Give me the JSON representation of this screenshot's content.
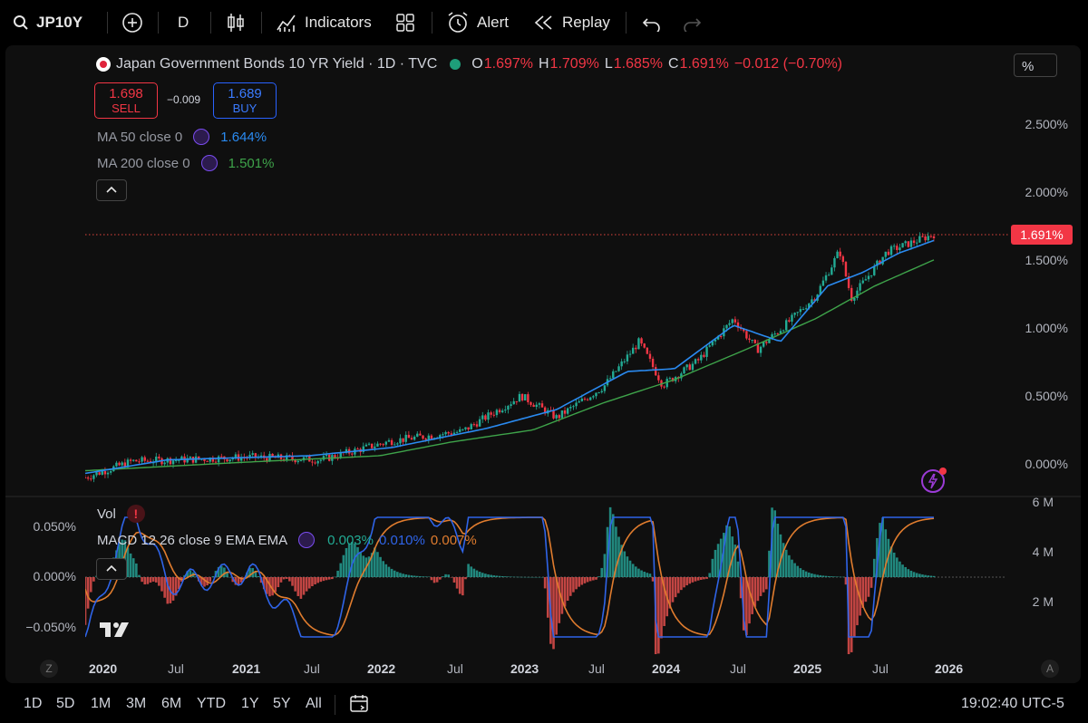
{
  "toolbar": {
    "symbol": "JP10Y",
    "interval": "D",
    "indicators_label": "Indicators",
    "alert_label": "Alert",
    "replay_label": "Replay"
  },
  "legend": {
    "title": "Japan Government Bonds 10 YR Yield · 1D · TVC",
    "o_label": "O",
    "o_value": "1.697%",
    "h_label": "H",
    "h_value": "1.709%",
    "l_label": "L",
    "l_value": "1.685%",
    "c_label": "C",
    "c_value": "1.691%",
    "change": "−0.012 (−0.70%)",
    "sell_price": "1.698",
    "sell_label": "SELL",
    "spread": "−0.009",
    "buy_price": "1.689",
    "buy_label": "BUY",
    "ma50_label": "MA 50 close 0",
    "ma50_value": "1.644%",
    "ma200_label": "MA 200 close 0",
    "ma200_value": "1.501%"
  },
  "price_axis": {
    "unit_label": "%",
    "ticks": [
      "2.500%",
      "2.000%",
      "1.500%",
      "1.000%",
      "0.500%",
      "0.000%"
    ],
    "last_price_tag": "1.691%"
  },
  "lower_pane": {
    "vol_label": "Vol",
    "macd_label": "MACD 12 26 close 9 EMA EMA",
    "macd_value": "0.003%",
    "signal_value": "0.010%",
    "hist_value": "0.007%",
    "left_ticks": [
      "0.050%",
      "0.000%",
      "−0.050%"
    ],
    "right_ticks": [
      "6 M",
      "4 M",
      "2 M"
    ]
  },
  "time_axis": {
    "labels": [
      "2020",
      "Jul",
      "2021",
      "Jul",
      "2022",
      "Jul",
      "2023",
      "Jul",
      "2024",
      "Jul",
      "2025",
      "Jul",
      "2026"
    ]
  },
  "bottom_bar": {
    "ranges": [
      "1D",
      "5D",
      "1M",
      "3M",
      "6M",
      "YTD",
      "1Y",
      "5Y",
      "All"
    ],
    "clock": "19:02:40 UTC-5"
  },
  "chart_data": {
    "type": "line",
    "x_range": [
      "2019-11",
      "2025-11"
    ],
    "ylim": [
      -0.1,
      2.7
    ],
    "series": [
      {
        "x": [
          "2019-11",
          "2020-03",
          "2020-07",
          "2021-01",
          "2021-07",
          "2022-01",
          "2022-07",
          "2022-12",
          "2023-03",
          "2023-07",
          "2023-10",
          "2023-12",
          "2024-03",
          "2024-06",
          "2024-08",
          "2024-11",
          "2025-01",
          "2025-03",
          "2025-04",
          "2025-07",
          "2025-11"
        ],
        "y": [
          -0.1,
          0.02,
          0.03,
          0.05,
          0.03,
          0.17,
          0.24,
          0.5,
          0.34,
          0.57,
          0.9,
          0.58,
          0.76,
          1.07,
          0.84,
          1.07,
          1.24,
          1.57,
          1.22,
          1.56,
          1.69
        ]
      },
      {
        "x": [
          "2019-11",
          "2020-06",
          "2021-06",
          "2022-01",
          "2022-09",
          "2023-03",
          "2023-09",
          "2024-01",
          "2024-06",
          "2024-10",
          "2025-02",
          "2025-05",
          "2025-08",
          "2025-11"
        ],
        "y": [
          -0.07,
          0.03,
          0.06,
          0.12,
          0.26,
          0.4,
          0.68,
          0.7,
          1.02,
          0.9,
          1.31,
          1.41,
          1.55,
          1.644
        ]
      },
      {
        "x": [
          "2019-11",
          "2020-12",
          "2021-12",
          "2022-06",
          "2023-01",
          "2023-07",
          "2024-01",
          "2024-07",
          "2025-01",
          "2025-06",
          "2025-11"
        ],
        "y": [
          -0.05,
          0.01,
          0.06,
          0.16,
          0.25,
          0.45,
          0.62,
          0.84,
          1.07,
          1.31,
          1.501
        ]
      }
    ]
  }
}
